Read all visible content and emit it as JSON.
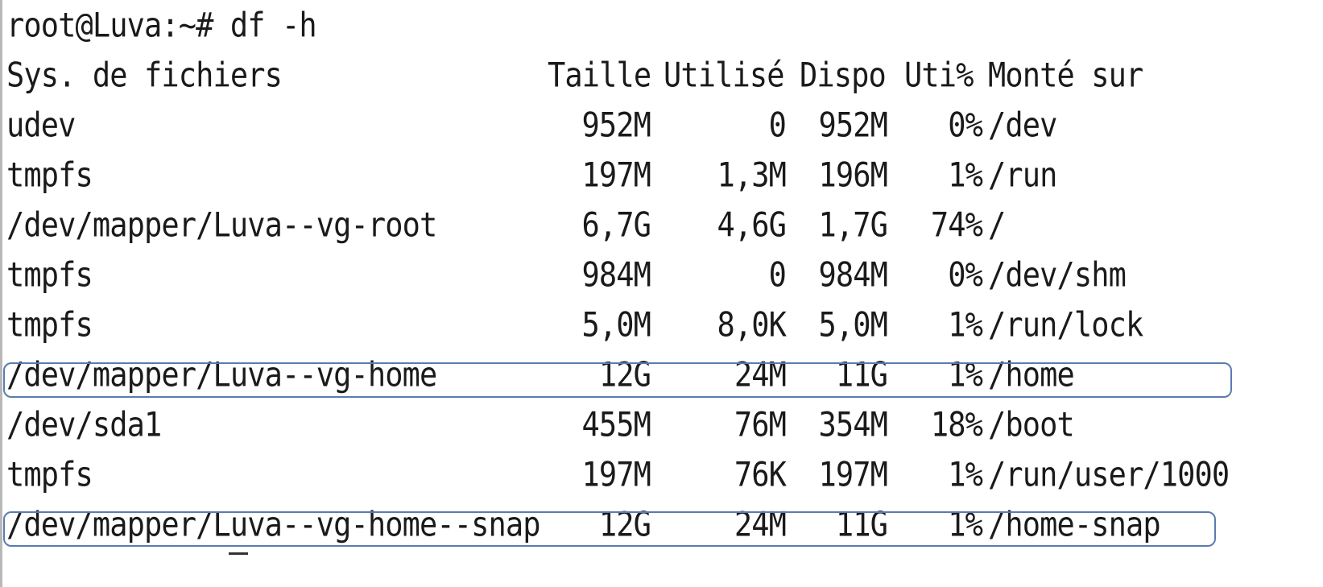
{
  "terminal": {
    "prompt": "root@Luva:~# df -h",
    "headers": {
      "filesystem": "Sys. de fichiers",
      "size": "Taille",
      "used": "Utilisé",
      "avail": "Dispo",
      "pct": "Uti%",
      "mount": "Monté sur"
    },
    "rows": [
      {
        "filesystem": "udev",
        "size": "952M",
        "used": "0",
        "avail": "952M",
        "pct": "0%",
        "mount": "/dev"
      },
      {
        "filesystem": "tmpfs",
        "size": "197M",
        "used": "1,3M",
        "avail": "196M",
        "pct": "1%",
        "mount": "/run"
      },
      {
        "filesystem": "/dev/mapper/Luva--vg-root",
        "size": "6,7G",
        "used": "4,6G",
        "avail": "1,7G",
        "pct": "74%",
        "mount": "/"
      },
      {
        "filesystem": "tmpfs",
        "size": "984M",
        "used": "0",
        "avail": "984M",
        "pct": "0%",
        "mount": "/dev/shm"
      },
      {
        "filesystem": "tmpfs",
        "size": "5,0M",
        "used": "8,0K",
        "avail": "5,0M",
        "pct": "1%",
        "mount": "/run/lock"
      },
      {
        "filesystem": "/dev/mapper/Luva--vg-home",
        "size": "12G",
        "used": "24M",
        "avail": "11G",
        "pct": "1%",
        "mount": "/home"
      },
      {
        "filesystem": "/dev/sda1",
        "size": "455M",
        "used": "76M",
        "avail": "354M",
        "pct": "18%",
        "mount": "/boot"
      },
      {
        "filesystem": "tmpfs",
        "size": "197M",
        "used": "76K",
        "avail": "197M",
        "pct": "1%",
        "mount": "/run/user/1000"
      },
      {
        "filesystem": "/dev/mapper/Luva--vg-home--snap",
        "size": "12G",
        "used": "24M",
        "avail": "11G",
        "pct": "1%",
        "mount": "/home-snap"
      }
    ],
    "highlighted_rows": [
      5,
      8
    ],
    "highlight_color": "#5b7bb0"
  }
}
